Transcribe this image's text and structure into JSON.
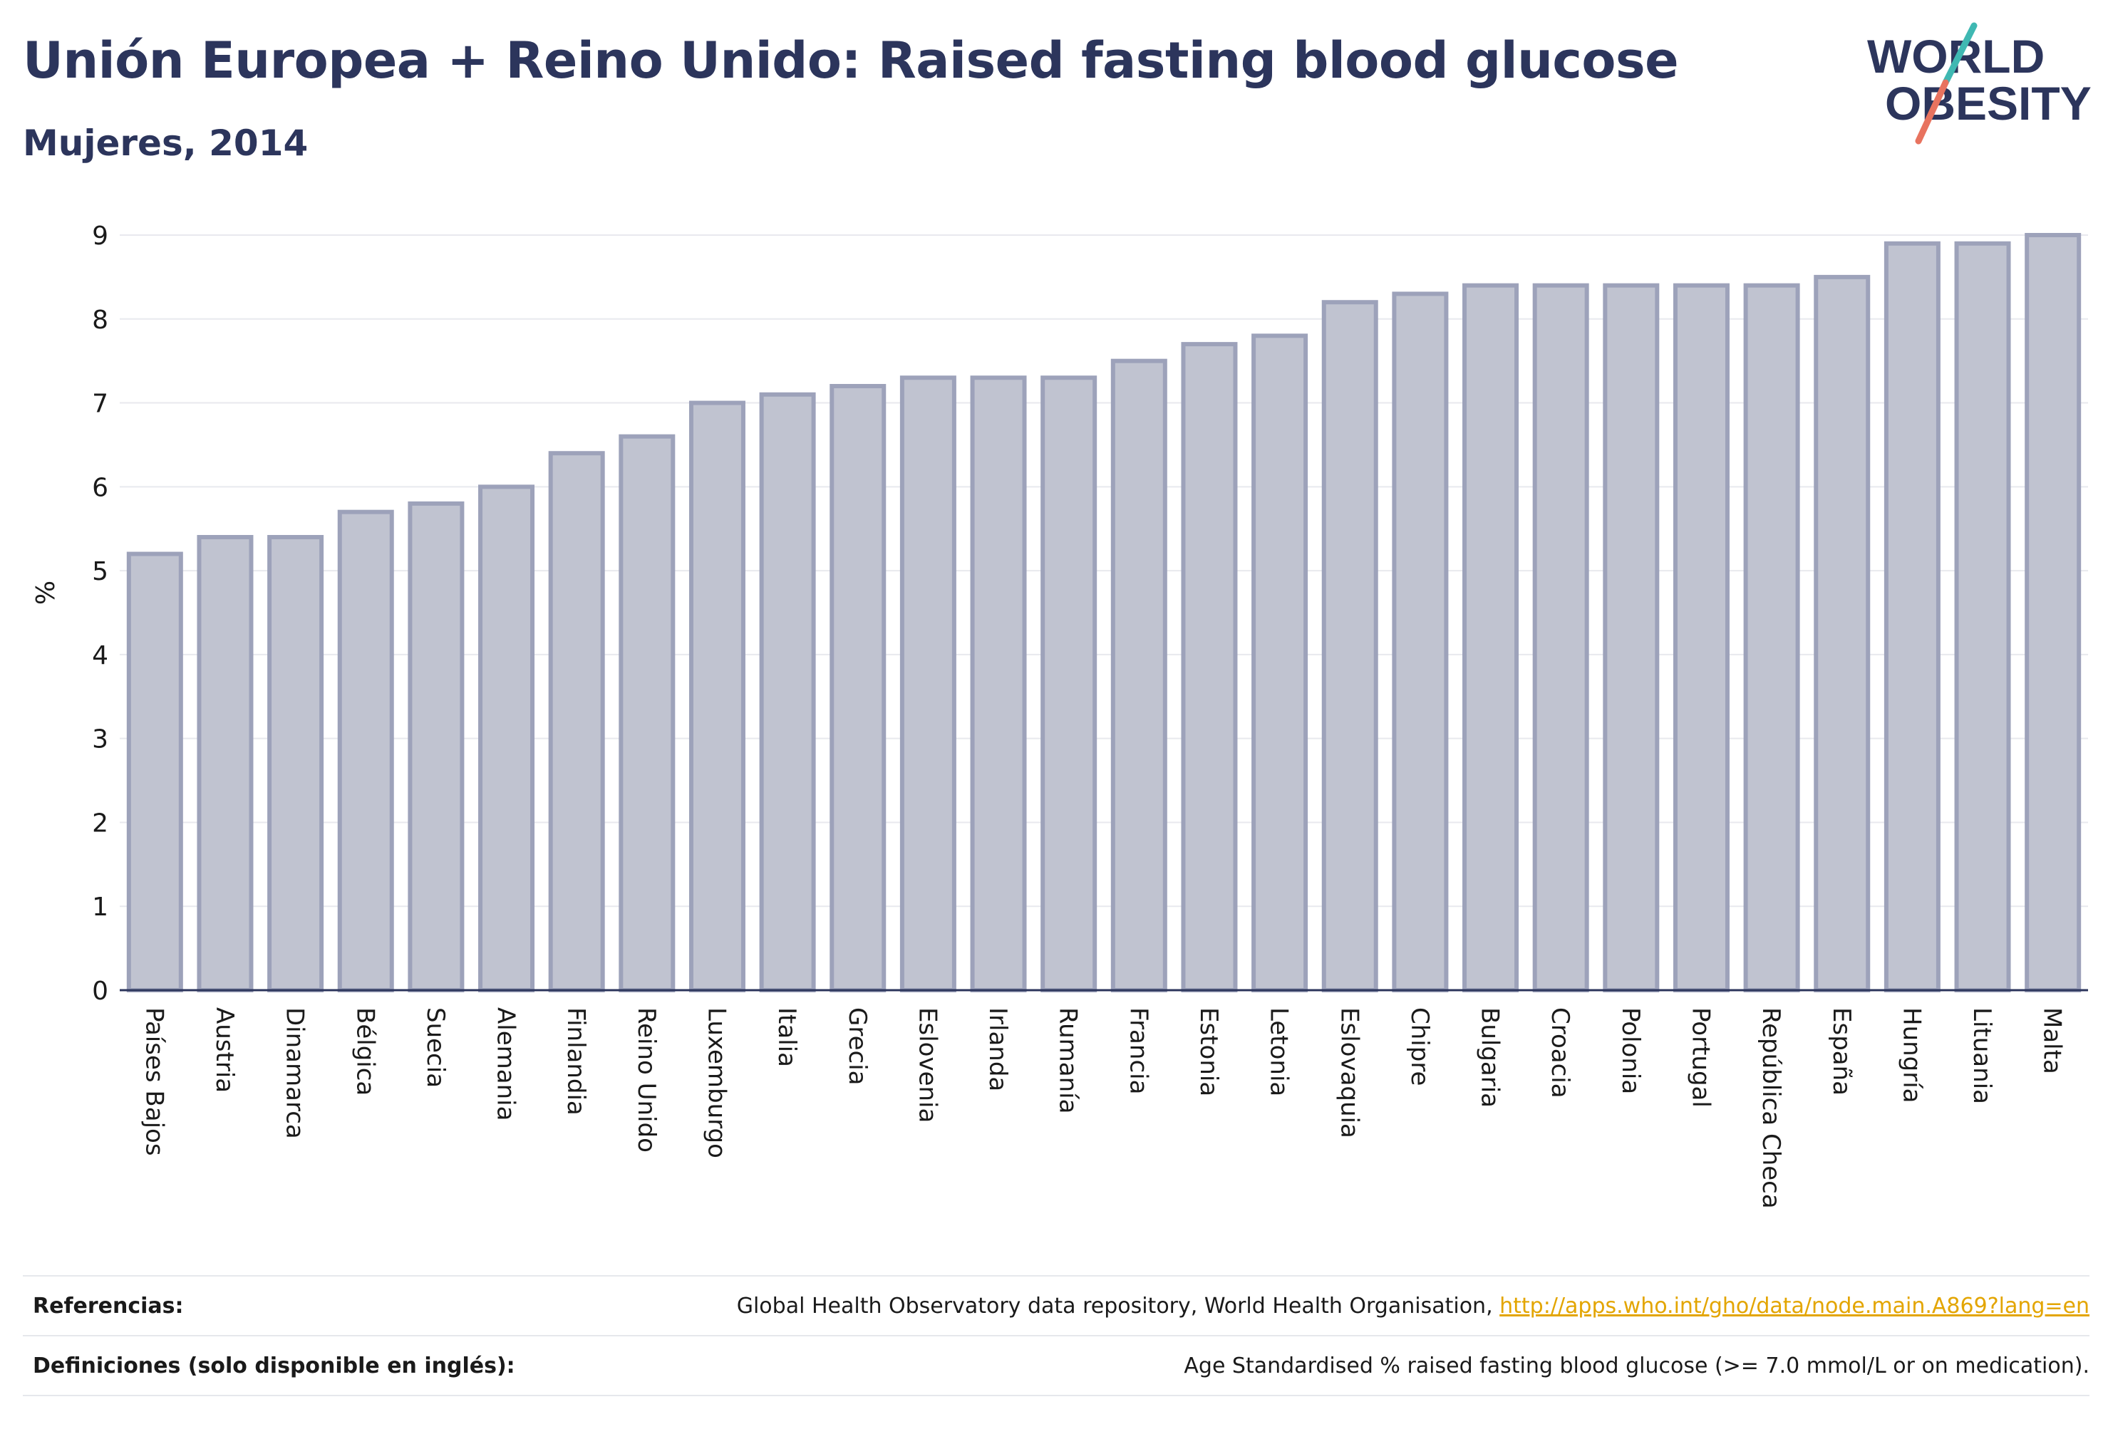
{
  "title": "Unión Europea + Reino Unido: Raised fasting blood glucose",
  "subtitle": "Mujeres, 2014",
  "logo": {
    "line1": "WORLD",
    "line2": "OBESITY"
  },
  "chart_data": {
    "type": "bar",
    "title": "Unión Europea + Reino Unido: Raised fasting blood glucose",
    "subtitle": "Mujeres, 2014",
    "xlabel": "",
    "ylabel": "%",
    "ylim": [
      0,
      9
    ],
    "yticks": [
      "0",
      "1",
      "2",
      "3",
      "4",
      "5",
      "6",
      "7",
      "8",
      "9"
    ],
    "grid": true,
    "categories": [
      "Países Bajos",
      "Austria",
      "Dinamarca",
      "Bélgica",
      "Suecia",
      "Alemania",
      "Finlandia",
      "Reino Unido",
      "Luxemburgo",
      "Italia",
      "Grecia",
      "Eslovenia",
      "Irlanda",
      "Rumanía",
      "Francia",
      "Estonia",
      "Letonia",
      "Eslovaquia",
      "Chipre",
      "Bulgaria",
      "Croacia",
      "Polonia",
      "Portugal",
      "República Checa",
      "España",
      "Hungría",
      "Lituania",
      "Malta"
    ],
    "values": [
      5.2,
      5.4,
      5.4,
      5.7,
      5.8,
      6.0,
      6.4,
      6.6,
      7.0,
      7.1,
      7.2,
      7.3,
      7.3,
      7.3,
      7.5,
      7.7,
      7.8,
      8.2,
      8.3,
      8.4,
      8.4,
      8.4,
      8.4,
      8.4,
      8.5,
      8.9,
      8.9,
      9.0
    ],
    "colors": {
      "bar_fill": "#c0c3d0",
      "bar_stroke": "#9da2ba",
      "axis": "#2c355c",
      "grid": "#e8e9ee"
    }
  },
  "footer": {
    "references_label": "Referencias:",
    "references_text": "Global Health Observatory data repository, World Health Organisation, ",
    "references_link": "http://apps.who.int/gho/data/node.main.A869?lang=en",
    "definitions_label": "Definiciones (solo disponible en inglés):",
    "definitions_text": "Age Standardised % raised fasting blood glucose (>= 7.0 mmol/L or on medication)."
  }
}
